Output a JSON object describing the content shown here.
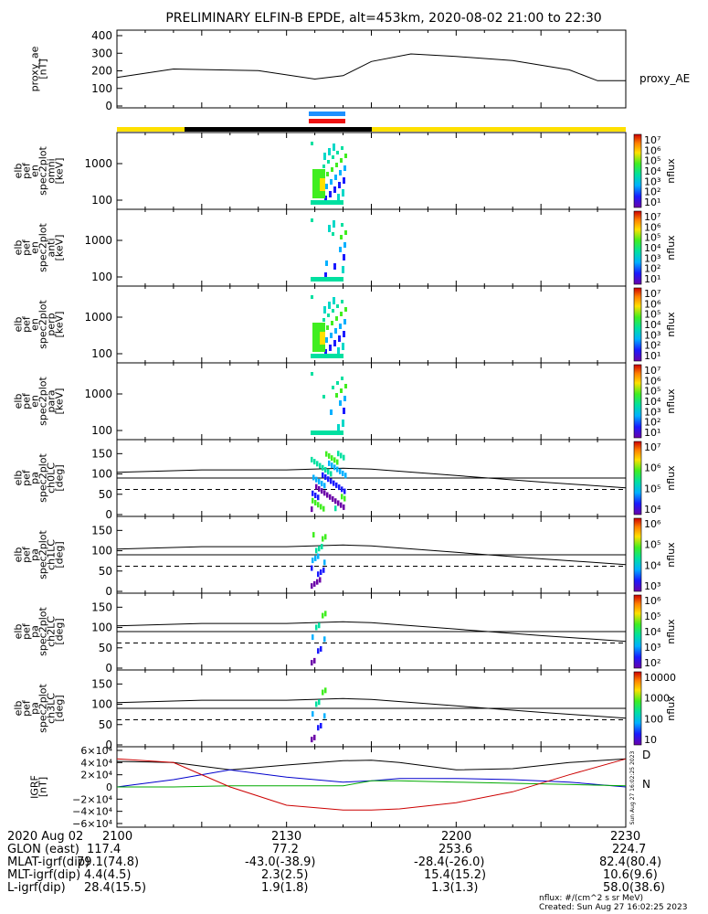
{
  "title": "PRELIMINARY ELFIN-B EPDE, alt=453km, 2020-08-02 21:00 to 22:30",
  "chart_data": [
    {
      "type": "line",
      "name": "proxy_ae",
      "ylabel": [
        "proxy_ae",
        "[nT]"
      ],
      "right_label": "proxy_AE",
      "yticks": [
        "400",
        "300",
        "200",
        "100",
        "0"
      ],
      "ylim": [
        0,
        420
      ],
      "x_minutes": [
        0,
        10,
        25,
        35,
        40,
        45,
        52,
        60,
        70,
        80,
        85,
        90
      ],
      "y": [
        160,
        210,
        200,
        150,
        170,
        255,
        300,
        285,
        260,
        205,
        140,
        140
      ]
    },
    {
      "type": "heatmap",
      "name": "en omni",
      "ylabel": [
        "elb",
        "pef",
        "en",
        "spec2plot",
        "omni",
        "[keV]"
      ],
      "yticks": [
        "1000",
        "100"
      ],
      "colorbar_ticks": [
        "10⁷",
        "10⁶",
        "10⁵",
        "10⁴",
        "10³",
        "10²",
        "10¹"
      ],
      "colorbar_label": "nflux"
    },
    {
      "type": "heatmap",
      "name": "en anti",
      "ylabel": [
        "elb",
        "pef",
        "en",
        "spec2plot",
        "anti",
        "[keV]"
      ],
      "yticks": [
        "1000",
        "100"
      ],
      "colorbar_ticks": [
        "10⁷",
        "10⁶",
        "10⁵",
        "10⁴",
        "10³",
        "10²",
        "10¹"
      ],
      "colorbar_label": "nflux"
    },
    {
      "type": "heatmap",
      "name": "en perp",
      "ylabel": [
        "elb",
        "pef",
        "en",
        "spec2plot",
        "perp",
        "[keV]"
      ],
      "yticks": [
        "1000",
        "100"
      ],
      "colorbar_ticks": [
        "10⁷",
        "10⁶",
        "10⁵",
        "10⁴",
        "10³",
        "10²",
        "10¹"
      ],
      "colorbar_label": "nflux"
    },
    {
      "type": "heatmap",
      "name": "en para",
      "ylabel": [
        "elb",
        "pef",
        "en",
        "spec2plot",
        "para",
        "[keV]"
      ],
      "yticks": [
        "1000",
        "100"
      ],
      "colorbar_ticks": [
        "10⁷",
        "10⁶",
        "10⁵",
        "10⁴",
        "10³",
        "10²",
        "10¹"
      ],
      "colorbar_label": "nflux"
    },
    {
      "type": "heatmap",
      "name": "pa ch0LC",
      "ylabel": [
        "elb",
        "pef",
        "pa",
        "spec2plot",
        "ch0LC",
        "[deg]"
      ],
      "yticks": [
        "150",
        "100",
        "50",
        "0"
      ],
      "colorbar_ticks": [
        "10⁷",
        "10⁶",
        "10⁵",
        "10⁴"
      ],
      "colorbar_label": "nflux"
    },
    {
      "type": "heatmap",
      "name": "pa ch1LC",
      "ylabel": [
        "elb",
        "pef",
        "pa",
        "spec2plot",
        "ch1LC",
        "[deg]"
      ],
      "yticks": [
        "150",
        "100",
        "50",
        "0"
      ],
      "colorbar_ticks": [
        "10⁶",
        "10⁵",
        "10⁴",
        "10³"
      ],
      "colorbar_label": "nflux"
    },
    {
      "type": "heatmap",
      "name": "pa ch2LC",
      "ylabel": [
        "elb",
        "pef",
        "pa",
        "spec2plot",
        "ch2LC",
        "[deg]"
      ],
      "yticks": [
        "150",
        "100",
        "50",
        "0"
      ],
      "colorbar_ticks": [
        "10⁶",
        "10⁵",
        "10⁴",
        "10³",
        "10²"
      ],
      "colorbar_label": "nflux"
    },
    {
      "type": "heatmap",
      "name": "pa ch3LC",
      "ylabel": [
        "elb",
        "pef",
        "pa",
        "spec2plot",
        "ch3LC",
        "[deg]"
      ],
      "yticks": [
        "150",
        "100",
        "50",
        "0"
      ],
      "colorbar_ticks": [
        "10000",
        "1000",
        "100",
        "10"
      ],
      "colorbar_label": "nflux"
    },
    {
      "type": "line",
      "name": "IGRF",
      "ylabel": [
        "IGRF",
        "[nT]"
      ],
      "yticks": [
        "6×10⁴",
        "4×10⁴",
        "2×10⁴",
        "0",
        "−2×10⁴",
        "−4×10⁴",
        "−6×10⁴"
      ],
      "ylim": [
        -60000,
        60000
      ],
      "legend": [
        "D",
        "N"
      ],
      "side_text": "Sun Aug 27 16:02:25 2023",
      "x_minutes": [
        0,
        10,
        20,
        30,
        40,
        45,
        50,
        60,
        70,
        80,
        90
      ],
      "series": [
        {
          "color": "#000000",
          "values": [
            42000,
            40000,
            28000,
            36000,
            43000,
            44000,
            40000,
            28000,
            30000,
            40000,
            46000
          ]
        },
        {
          "color": "#0000cc",
          "values": [
            0,
            12000,
            28000,
            16000,
            8000,
            10000,
            14000,
            14000,
            12000,
            8000,
            0
          ]
        },
        {
          "color": "#00aa00",
          "values": [
            0,
            0,
            2000,
            2000,
            2000,
            10000,
            10000,
            8000,
            6000,
            4000,
            2000
          ]
        },
        {
          "color": "#cc0000",
          "values": [
            46000,
            40000,
            0,
            -30000,
            -38000,
            -38000,
            -36000,
            -26000,
            -8000,
            20000,
            46000
          ]
        }
      ]
    }
  ],
  "xaxis": {
    "rows": [
      {
        "label": "2020 Aug 02",
        "values": [
          "2100",
          "2130",
          "2200",
          "2230"
        ]
      },
      {
        "label": "GLON (east)",
        "values": [
          "117.4",
          "77.2",
          "253.6",
          "224.7"
        ]
      },
      {
        "label": "MLAT-igrf(dip)",
        "values": [
          "79.1(74.8)",
          "-43.0(-38.9)",
          "-28.4(-26.0)",
          "82.4(80.4)"
        ]
      },
      {
        "label": "MLT-igrf(dip)",
        "values": [
          "4.4(4.5)",
          "2.3(2.5)",
          "15.4(15.2)",
          "10.6(9.6)"
        ]
      },
      {
        "label": "L-igrf(dip)",
        "values": [
          "28.4(15.5)",
          "1.9(1.8)",
          "1.3(1.3)",
          "58.0(38.6)"
        ]
      }
    ]
  },
  "footer": {
    "units": "nflux: #/(cm^2 s sr MeV)",
    "created": "Created: Sun Aug 27 16:02:25 2023"
  },
  "colors": {
    "bar_yellow": "#ffe000",
    "bar_black": "#000000",
    "bar_blue": "#1e90ff",
    "bar_red": "#ee1111"
  }
}
